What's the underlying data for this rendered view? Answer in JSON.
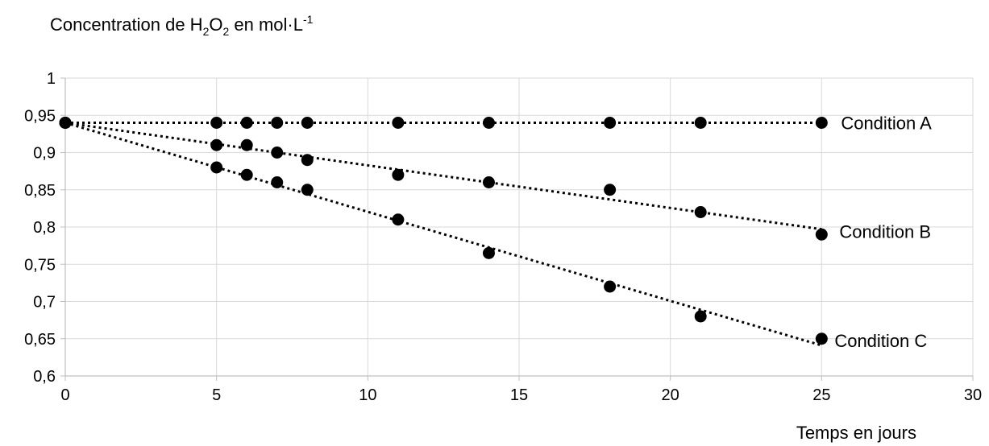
{
  "chart_data": {
    "type": "scatter",
    "title": {
      "main": "Concentration de H",
      "sub1": "2",
      "mid": "O",
      "sub2": "2",
      "tail": " en mol·L",
      "sup": "-1"
    },
    "xlabel": "Temps en jours",
    "ylabel": "",
    "xlim": [
      0,
      30
    ],
    "ylim": [
      0.6,
      1
    ],
    "xticks": [
      0,
      5,
      10,
      15,
      20,
      25,
      30
    ],
    "xtick_labels": [
      "0",
      "5",
      "10",
      "15",
      "20",
      "25",
      "30"
    ],
    "yticks": [
      0.6,
      0.65,
      0.7,
      0.75,
      0.8,
      0.85,
      0.9,
      0.95,
      1
    ],
    "ytick_labels": [
      "0,6",
      "0,65",
      "0,7",
      "0,75",
      "0,8",
      "0,85",
      "0,9",
      "0,95",
      "1"
    ],
    "grid": true,
    "trendline": "linear dotted",
    "series": [
      {
        "name": "Condition A",
        "x": [
          0,
          5,
          6,
          7,
          8,
          11,
          14,
          18,
          21,
          25
        ],
        "y": [
          0.94,
          0.94,
          0.94,
          0.94,
          0.94,
          0.94,
          0.94,
          0.94,
          0.94,
          0.94
        ],
        "trend": [
          [
            0,
            0.94
          ],
          [
            25,
            0.94
          ]
        ]
      },
      {
        "name": "Condition B",
        "x": [
          0,
          5,
          6,
          7,
          8,
          11,
          14,
          18,
          21,
          25
        ],
        "y": [
          0.94,
          0.91,
          0.91,
          0.9,
          0.89,
          0.87,
          0.86,
          0.85,
          0.82,
          0.79
        ],
        "trend": [
          [
            0,
            0.94
          ],
          [
            25,
            0.797
          ]
        ]
      },
      {
        "name": "Condition C",
        "x": [
          0,
          5,
          6,
          7,
          8,
          11,
          14,
          18,
          21,
          25
        ],
        "y": [
          0.94,
          0.88,
          0.87,
          0.86,
          0.85,
          0.81,
          0.765,
          0.72,
          0.68,
          0.65
        ],
        "trend": [
          [
            0,
            0.94
          ],
          [
            25,
            0.641
          ]
        ]
      }
    ],
    "colors": {
      "marker": "#000000",
      "grid": "#d9d9d9",
      "axis": "#bfbfbf"
    }
  }
}
